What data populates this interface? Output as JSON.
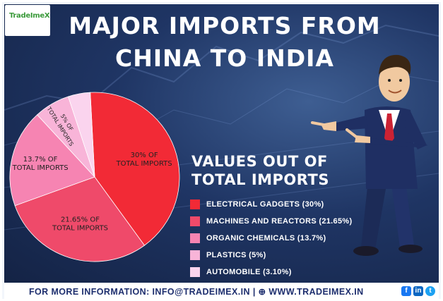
{
  "logo": {
    "text": "TradeImeX"
  },
  "title": {
    "line1": "MAJOR IMPORTS FROM",
    "line2": "CHINA TO INDIA"
  },
  "legend": {
    "title_line1": "VALUES OUT OF",
    "title_line2": "TOTAL IMPORTS",
    "items": [
      {
        "label": "ELECTRICAL GADGETS (30%)",
        "color": "#f22a36"
      },
      {
        "label": "MACHINES AND REACTORS (21.65%)",
        "color": "#ef4a6a"
      },
      {
        "label": "ORGANIC CHEMICALS (13.7%)",
        "color": "#f684b2"
      },
      {
        "label": "PLASTICS (5%)",
        "color": "#f8b4d8"
      },
      {
        "label": "AUTOMOBILE (3.10%)",
        "color": "#fad4ee"
      }
    ]
  },
  "chart_data": {
    "type": "pie",
    "title": "MAJOR IMPORTS FROM CHINA TO INDIA",
    "categories": [
      "ELECTRICAL GADGETS",
      "MACHINES AND REACTORS",
      "ORGANIC CHEMICALS",
      "PLASTICS",
      "AUTOMOBILE"
    ],
    "values": [
      30,
      21.65,
      13.7,
      5,
      3.1
    ],
    "colors": [
      "#f22a36",
      "#ef4a6a",
      "#f684b2",
      "#f8b4d8",
      "#fad4ee"
    ],
    "slice_labels": [
      [
        "30% OF",
        "TOTAL IMPORTS"
      ],
      [
        "21.65% OF",
        "TOTAL IMPORTS"
      ],
      [
        "13.7% OF",
        "TOTAL IMPORTS"
      ],
      [
        "5% OF",
        "TOTAL IMPORTS"
      ],
      []
    ],
    "legend_position": "right"
  },
  "footer": {
    "text": "FOR MORE INFORMATION: INFO@TRADEIMEX.IN | ⊕ WWW.TRADEIMEX.IN"
  },
  "social": {
    "facebook": "f",
    "linkedin": "in",
    "twitter": "t"
  }
}
